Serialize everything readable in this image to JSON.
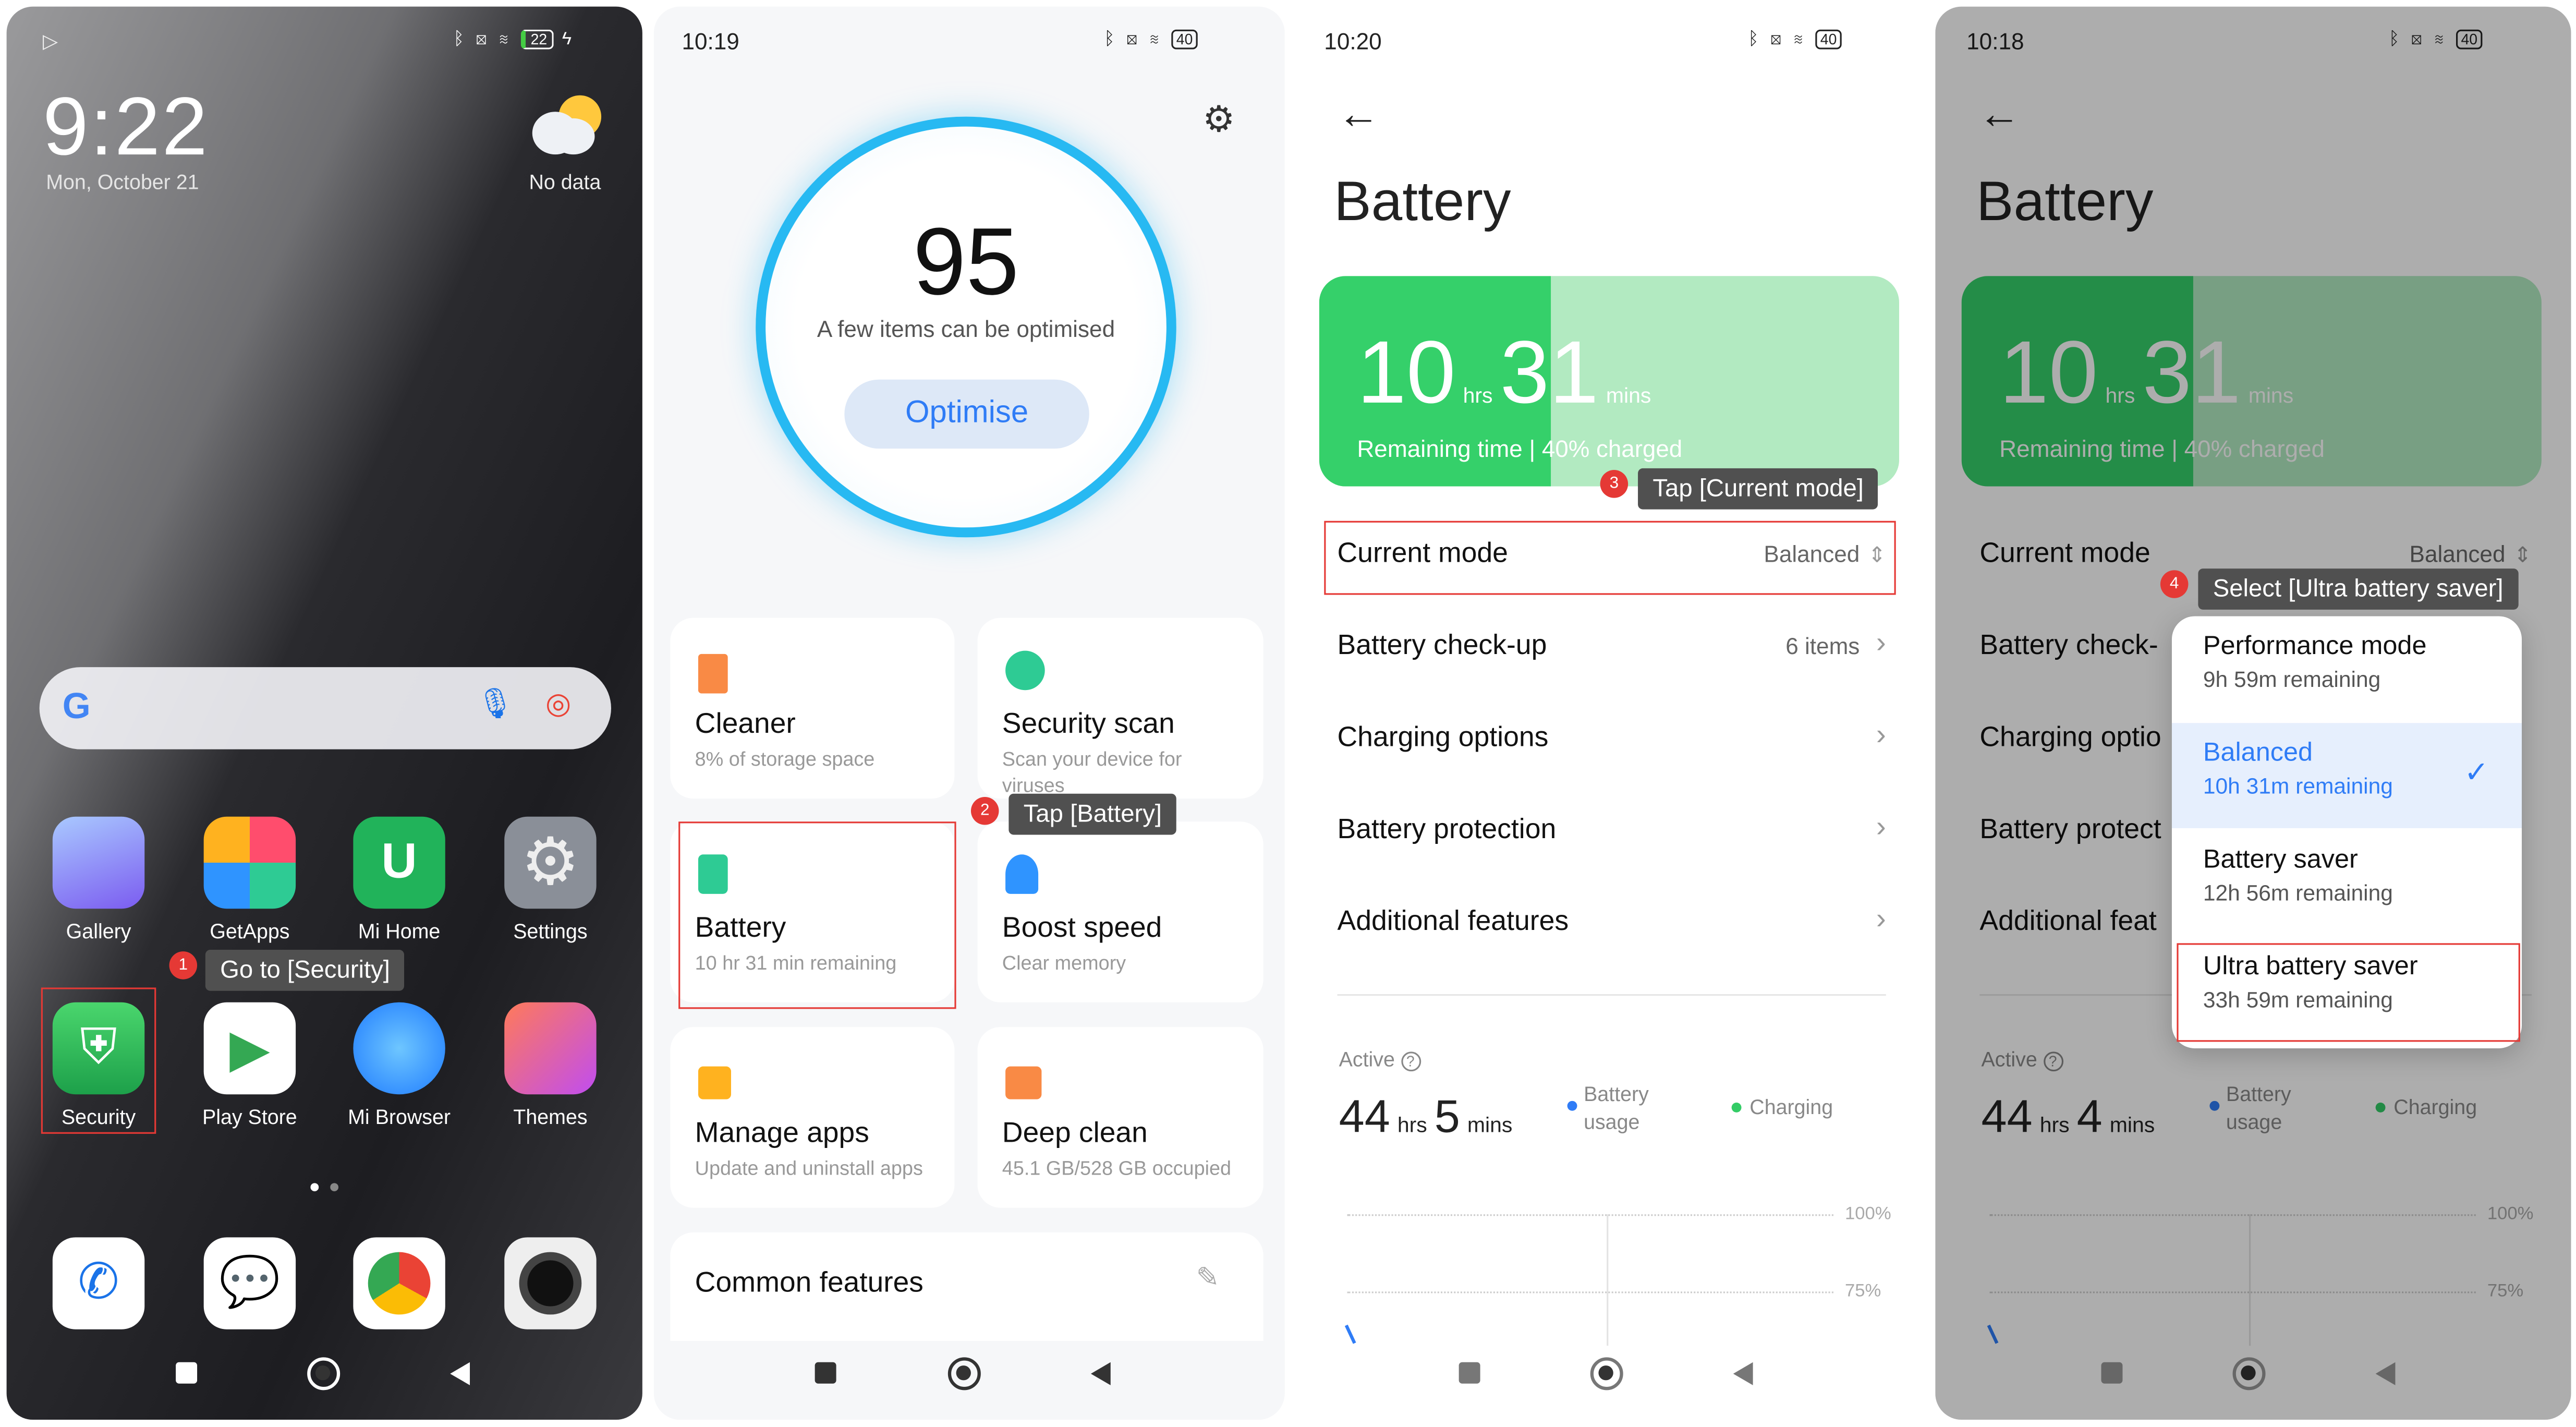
{
  "screens": {
    "home": {
      "status": {
        "battery_level": "22"
      },
      "clock": "9:22",
      "date": "Mon, October 21",
      "weather": "No data",
      "apps_row1": [
        {
          "label": "Gallery"
        },
        {
          "label": "GetApps"
        },
        {
          "label": "Mi Home"
        },
        {
          "label": "Settings"
        }
      ],
      "apps_row2": [
        {
          "label": "Security"
        },
        {
          "label": "Play Store"
        },
        {
          "label": "Mi Browser"
        },
        {
          "label": "Themes"
        }
      ],
      "dock": [
        "phone-icon",
        "messages-icon",
        "chrome-icon",
        "camera-icon"
      ],
      "step": {
        "number": "1",
        "instruction": "Go to [Security]"
      }
    },
    "security": {
      "status": {
        "time": "10:19",
        "battery_level": "40"
      },
      "score": "95",
      "score_caption": "A few items can be optimised",
      "optimise_label": "Optimise",
      "cards": [
        {
          "title": "Cleaner",
          "subtitle": "8% of storage space",
          "color": "#f98a45"
        },
        {
          "title": "Security scan",
          "subtitle": "Scan your device for viruses",
          "color": "#2ecb94"
        },
        {
          "title": "Battery",
          "subtitle": "10 hr 31 min  remaining",
          "color": "#2ecb94"
        },
        {
          "title": "Boost speed",
          "subtitle": "Clear memory",
          "color": "#2f94ff"
        },
        {
          "title": "Manage apps",
          "subtitle": "Update and uninstall apps",
          "color": "#ffb21f"
        },
        {
          "title": "Deep clean",
          "subtitle": "45.1 GB/528 GB occupied",
          "color": "#f98a45"
        }
      ],
      "common_features": "Common features",
      "step": {
        "number": "2",
        "instruction": "Tap [Battery]"
      }
    },
    "battery": {
      "status": {
        "time": "10:20",
        "battery_level": "40"
      },
      "title": "Battery",
      "remaining": {
        "hours": "10",
        "hrs_unit": "hrs",
        "mins": "31",
        "mins_unit": "mins",
        "caption": "Remaining time | 40% charged",
        "charge_percent": 40
      },
      "rows": [
        {
          "label": "Current mode",
          "value": "Balanced"
        },
        {
          "label": "Battery check-up",
          "value": "6 items"
        },
        {
          "label": "Charging options",
          "value": ""
        },
        {
          "label": "Battery protection",
          "value": ""
        },
        {
          "label": "Additional features",
          "value": ""
        }
      ],
      "active_label": "Active",
      "active": {
        "hours": "44",
        "hrs_unit": "hrs",
        "mins": "5",
        "mins_unit": "mins"
      },
      "legend": [
        "Battery usage",
        "Charging"
      ],
      "y_ticks": [
        "100%",
        "75%"
      ],
      "step": {
        "number": "3",
        "instruction": "Tap [Current mode]"
      }
    },
    "battery_mode": {
      "status": {
        "time": "10:18",
        "battery_level": "40"
      },
      "title": "Battery",
      "remaining": {
        "hours": "10",
        "hrs_unit": "hrs",
        "mins": "31",
        "mins_unit": "mins",
        "caption": "Remaining time | 40% charged"
      },
      "rows": [
        {
          "label": "Current mode",
          "value": "Balanced"
        },
        {
          "label": "Battery check-"
        },
        {
          "label": "Charging optio"
        },
        {
          "label": "Battery protect"
        },
        {
          "label": "Additional feat"
        }
      ],
      "active_label": "Active",
      "active": {
        "hours": "44",
        "hrs_unit": "hrs",
        "mins": "4",
        "mins_unit": "mins"
      },
      "legend": [
        "Battery usage",
        "Charging"
      ],
      "y_ticks": [
        "100%",
        "75%"
      ],
      "modes": [
        {
          "name": "Performance mode",
          "remaining": "9h 59m remaining",
          "selected": false
        },
        {
          "name": "Balanced",
          "remaining": "10h 31m remaining",
          "selected": true
        },
        {
          "name": "Battery saver",
          "remaining": "12h 56m remaining",
          "selected": false
        },
        {
          "name": "Ultra battery saver",
          "remaining": "33h 59m remaining",
          "selected": false
        }
      ],
      "step": {
        "number": "4",
        "instruction": "Select [Ultra battery saver]"
      }
    }
  },
  "colors": {
    "accent_blue": "#2f7cf6",
    "battery_green": "#33cc66",
    "highlight_red": "#e53935",
    "tooltip_bg": "#505050"
  }
}
